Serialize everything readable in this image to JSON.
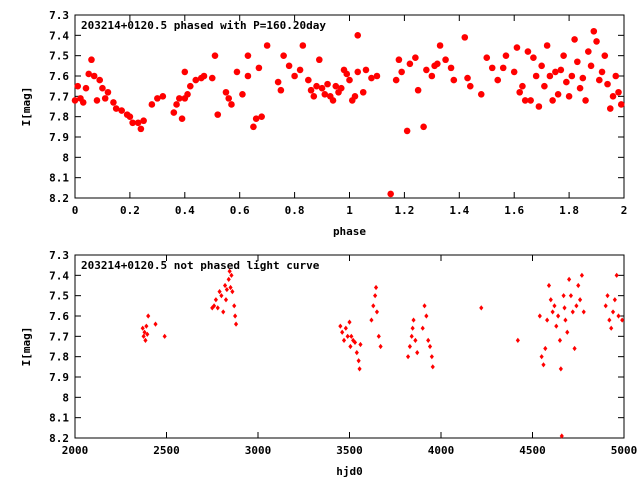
{
  "chart_data": [
    {
      "type": "scatter",
      "title": "203214+0120.5 phased with P=160.20day",
      "xlabel": "phase",
      "ylabel": "I[mag]",
      "xlim": [
        0,
        2
      ],
      "ylim": [
        7.3,
        8.2
      ],
      "y_inverted": true,
      "grid": false,
      "marker_color": "#ff0000",
      "xticks": [
        "0",
        "0.2",
        "0.4",
        "0.6",
        "0.8",
        "1",
        "1.2",
        "1.4",
        "1.6",
        "1.8",
        "2"
      ],
      "yticks": [
        "7.3",
        "7.4",
        "7.5",
        "7.6",
        "7.7",
        "7.8",
        "7.9",
        "8",
        "8.1",
        "8.2"
      ],
      "points": [
        [
          0.0,
          7.72
        ],
        [
          0.01,
          7.65
        ],
        [
          0.02,
          7.71
        ],
        [
          0.03,
          7.73
        ],
        [
          0.04,
          7.66
        ],
        [
          0.05,
          7.59
        ],
        [
          0.06,
          7.52
        ],
        [
          0.07,
          7.6
        ],
        [
          0.08,
          7.72
        ],
        [
          0.09,
          7.62
        ],
        [
          0.1,
          7.66
        ],
        [
          0.11,
          7.71
        ],
        [
          0.12,
          7.68
        ],
        [
          0.14,
          7.73
        ],
        [
          0.15,
          7.76
        ],
        [
          0.17,
          7.77
        ],
        [
          0.19,
          7.79
        ],
        [
          0.2,
          7.8
        ],
        [
          0.21,
          7.83
        ],
        [
          0.23,
          7.83
        ],
        [
          0.24,
          7.86
        ],
        [
          0.25,
          7.82
        ],
        [
          0.28,
          7.74
        ],
        [
          0.3,
          7.71
        ],
        [
          0.32,
          7.7
        ],
        [
          0.36,
          7.78
        ],
        [
          0.37,
          7.74
        ],
        [
          0.38,
          7.71
        ],
        [
          0.39,
          7.81
        ],
        [
          0.4,
          7.71
        ],
        [
          0.41,
          7.69
        ],
        [
          0.42,
          7.65
        ],
        [
          0.4,
          7.58
        ],
        [
          0.44,
          7.62
        ],
        [
          0.46,
          7.61
        ],
        [
          0.47,
          7.6
        ],
        [
          0.5,
          7.61
        ],
        [
          0.51,
          7.5
        ],
        [
          0.52,
          7.79
        ],
        [
          0.55,
          7.68
        ],
        [
          0.56,
          7.71
        ],
        [
          0.57,
          7.74
        ],
        [
          0.59,
          7.58
        ],
        [
          0.61,
          7.69
        ],
        [
          0.63,
          7.6
        ],
        [
          0.63,
          7.5
        ],
        [
          0.65,
          7.85
        ],
        [
          0.66,
          7.81
        ],
        [
          0.67,
          7.56
        ],
        [
          0.68,
          7.8
        ],
        [
          0.7,
          7.45
        ],
        [
          0.74,
          7.63
        ],
        [
          0.75,
          7.67
        ],
        [
          0.76,
          7.5
        ],
        [
          0.78,
          7.55
        ],
        [
          0.8,
          7.6
        ],
        [
          0.82,
          7.57
        ],
        [
          0.83,
          7.45
        ],
        [
          0.85,
          7.62
        ],
        [
          0.86,
          7.67
        ],
        [
          0.87,
          7.7
        ],
        [
          0.88,
          7.65
        ],
        [
          0.89,
          7.52
        ],
        [
          0.9,
          7.66
        ],
        [
          0.91,
          7.69
        ],
        [
          0.92,
          7.64
        ],
        [
          0.93,
          7.7
        ],
        [
          0.94,
          7.72
        ],
        [
          0.95,
          7.65
        ],
        [
          0.96,
          7.68
        ],
        [
          0.97,
          7.66
        ],
        [
          0.98,
          7.57
        ],
        [
          0.99,
          7.59
        ],
        [
          1.0,
          7.62
        ],
        [
          1.01,
          7.72
        ],
        [
          1.02,
          7.7
        ],
        [
          1.03,
          7.58
        ],
        [
          1.03,
          7.4
        ],
        [
          1.05,
          7.68
        ],
        [
          1.06,
          7.57
        ],
        [
          1.08,
          7.61
        ],
        [
          1.1,
          7.6
        ],
        [
          1.15,
          8.18
        ],
        [
          1.17,
          7.62
        ],
        [
          1.18,
          7.52
        ],
        [
          1.19,
          7.58
        ],
        [
          1.21,
          7.87
        ],
        [
          1.22,
          7.54
        ],
        [
          1.24,
          7.51
        ],
        [
          1.25,
          7.67
        ],
        [
          1.27,
          7.85
        ],
        [
          1.28,
          7.57
        ],
        [
          1.3,
          7.6
        ],
        [
          1.31,
          7.55
        ],
        [
          1.32,
          7.54
        ],
        [
          1.33,
          7.45
        ],
        [
          1.35,
          7.52
        ],
        [
          1.37,
          7.56
        ],
        [
          1.38,
          7.62
        ],
        [
          1.42,
          7.41
        ],
        [
          1.43,
          7.61
        ],
        [
          1.44,
          7.65
        ],
        [
          1.48,
          7.69
        ],
        [
          1.5,
          7.51
        ],
        [
          1.52,
          7.56
        ],
        [
          1.54,
          7.62
        ],
        [
          1.56,
          7.56
        ],
        [
          1.57,
          7.5
        ],
        [
          1.6,
          7.58
        ],
        [
          1.61,
          7.46
        ],
        [
          1.62,
          7.68
        ],
        [
          1.63,
          7.65
        ],
        [
          1.64,
          7.72
        ],
        [
          1.65,
          7.48
        ],
        [
          1.66,
          7.72
        ],
        [
          1.67,
          7.51
        ],
        [
          1.68,
          7.6
        ],
        [
          1.69,
          7.75
        ],
        [
          1.7,
          7.55
        ],
        [
          1.71,
          7.65
        ],
        [
          1.72,
          7.45
        ],
        [
          1.73,
          7.6
        ],
        [
          1.74,
          7.72
        ],
        [
          1.75,
          7.58
        ],
        [
          1.76,
          7.69
        ],
        [
          1.77,
          7.57
        ],
        [
          1.78,
          7.5
        ],
        [
          1.79,
          7.63
        ],
        [
          1.8,
          7.7
        ],
        [
          1.81,
          7.6
        ],
        [
          1.82,
          7.42
        ],
        [
          1.83,
          7.53
        ],
        [
          1.84,
          7.66
        ],
        [
          1.85,
          7.61
        ],
        [
          1.86,
          7.72
        ],
        [
          1.87,
          7.48
        ],
        [
          1.88,
          7.55
        ],
        [
          1.89,
          7.38
        ],
        [
          1.9,
          7.43
        ],
        [
          1.91,
          7.62
        ],
        [
          1.92,
          7.58
        ],
        [
          1.93,
          7.5
        ],
        [
          1.94,
          7.64
        ],
        [
          1.95,
          7.76
        ],
        [
          1.96,
          7.7
        ],
        [
          1.97,
          7.6
        ],
        [
          1.98,
          7.68
        ],
        [
          1.99,
          7.74
        ]
      ]
    },
    {
      "type": "scatter",
      "title": "203214+0120.5 not phased light curve",
      "xlabel": "hjd0",
      "ylabel": "I[mag]",
      "xlim": [
        2000,
        5000
      ],
      "ylim": [
        7.3,
        8.2
      ],
      "y_inverted": true,
      "grid": false,
      "marker_color": "#ff0000",
      "xticks": [
        "2000",
        "2500",
        "3000",
        "3500",
        "4000",
        "4500",
        "5000"
      ],
      "yticks": [
        "7.3",
        "7.4",
        "7.5",
        "7.6",
        "7.7",
        "7.8",
        "7.9",
        "8",
        "8.1",
        "8.2"
      ],
      "points": [
        [
          2370,
          7.66
        ],
        [
          2375,
          7.7
        ],
        [
          2380,
          7.68
        ],
        [
          2385,
          7.72
        ],
        [
          2390,
          7.65
        ],
        [
          2395,
          7.69
        ],
        [
          2400,
          7.6
        ],
        [
          2440,
          7.64
        ],
        [
          2490,
          7.7
        ],
        [
          2750,
          7.56
        ],
        [
          2760,
          7.55
        ],
        [
          2770,
          7.52
        ],
        [
          2780,
          7.56
        ],
        [
          2790,
          7.48
        ],
        [
          2800,
          7.5
        ],
        [
          2810,
          7.58
        ],
        [
          2820,
          7.45
        ],
        [
          2825,
          7.52
        ],
        [
          2830,
          7.47
        ],
        [
          2840,
          7.42
        ],
        [
          2845,
          7.38
        ],
        [
          2850,
          7.46
        ],
        [
          2855,
          7.4
        ],
        [
          2860,
          7.48
        ],
        [
          2870,
          7.55
        ],
        [
          2875,
          7.6
        ],
        [
          2880,
          7.64
        ],
        [
          3450,
          7.65
        ],
        [
          3460,
          7.68
        ],
        [
          3470,
          7.72
        ],
        [
          3480,
          7.66
        ],
        [
          3490,
          7.7
        ],
        [
          3500,
          7.63
        ],
        [
          3505,
          7.75
        ],
        [
          3510,
          7.7
        ],
        [
          3520,
          7.72
        ],
        [
          3530,
          7.73
        ],
        [
          3540,
          7.78
        ],
        [
          3550,
          7.82
        ],
        [
          3555,
          7.86
        ],
        [
          3560,
          7.74
        ],
        [
          3620,
          7.62
        ],
        [
          3630,
          7.55
        ],
        [
          3640,
          7.5
        ],
        [
          3645,
          7.46
        ],
        [
          3650,
          7.58
        ],
        [
          3660,
          7.7
        ],
        [
          3670,
          7.75
        ],
        [
          3820,
          7.8
        ],
        [
          3830,
          7.75
        ],
        [
          3840,
          7.7
        ],
        [
          3845,
          7.66
        ],
        [
          3850,
          7.62
        ],
        [
          3860,
          7.72
        ],
        [
          3870,
          7.78
        ],
        [
          3900,
          7.66
        ],
        [
          3910,
          7.55
        ],
        [
          3920,
          7.6
        ],
        [
          3930,
          7.72
        ],
        [
          3940,
          7.75
        ],
        [
          3950,
          7.8
        ],
        [
          3955,
          7.85
        ],
        [
          4220,
          7.56
        ],
        [
          4420,
          7.72
        ],
        [
          4540,
          7.6
        ],
        [
          4550,
          7.8
        ],
        [
          4560,
          7.84
        ],
        [
          4570,
          7.76
        ],
        [
          4580,
          7.62
        ],
        [
          4590,
          7.45
        ],
        [
          4600,
          7.52
        ],
        [
          4610,
          7.58
        ],
        [
          4620,
          7.55
        ],
        [
          4630,
          7.65
        ],
        [
          4640,
          7.6
        ],
        [
          4650,
          7.72
        ],
        [
          4655,
          7.86
        ],
        [
          4660,
          8.19
        ],
        [
          4670,
          7.5
        ],
        [
          4675,
          7.56
        ],
        [
          4680,
          7.62
        ],
        [
          4690,
          7.68
        ],
        [
          4700,
          7.42
        ],
        [
          4710,
          7.5
        ],
        [
          4720,
          7.58
        ],
        [
          4730,
          7.76
        ],
        [
          4740,
          7.55
        ],
        [
          4750,
          7.45
        ],
        [
          4760,
          7.52
        ],
        [
          4770,
          7.4
        ],
        [
          4780,
          7.58
        ],
        [
          4900,
          7.55
        ],
        [
          4910,
          7.5
        ],
        [
          4920,
          7.62
        ],
        [
          4930,
          7.66
        ],
        [
          4940,
          7.58
        ],
        [
          4950,
          7.52
        ],
        [
          4960,
          7.4
        ],
        [
          4970,
          7.6
        ],
        [
          4990,
          7.62
        ]
      ]
    }
  ]
}
